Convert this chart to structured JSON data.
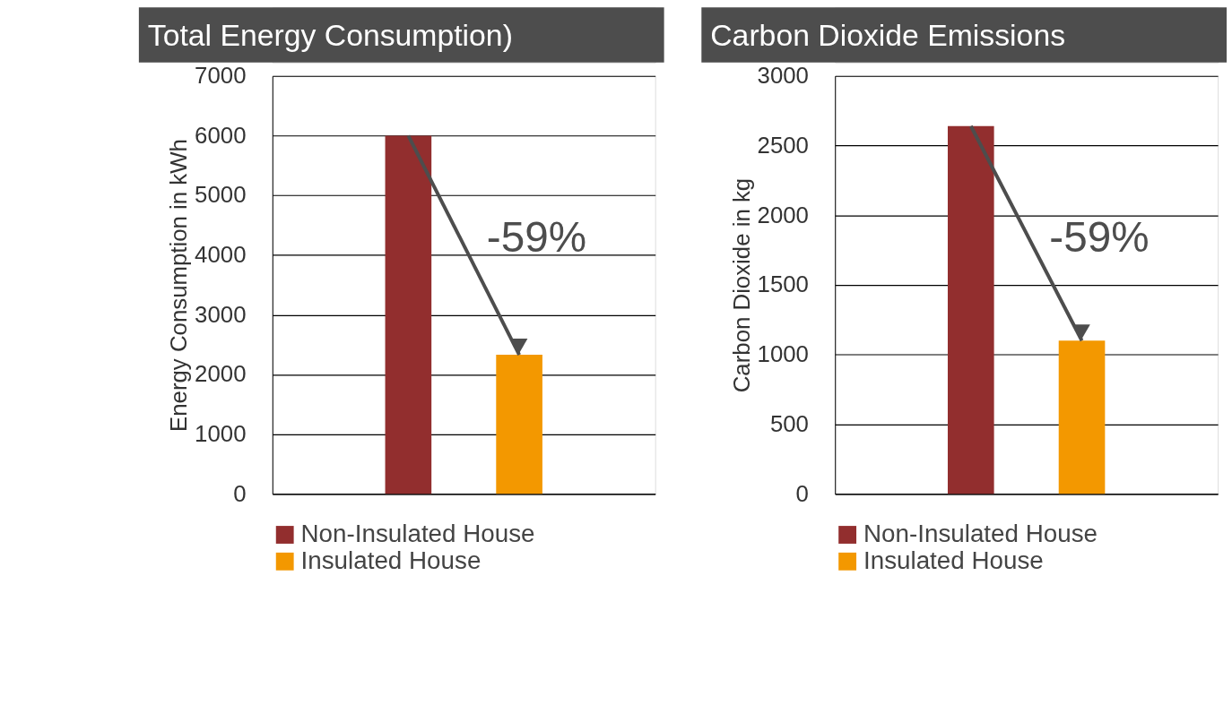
{
  "chart_data": [
    {
      "type": "bar",
      "title": "Total Energy Consumption)",
      "ylabel": "Energy Consumption in kWh",
      "categories": [
        null
      ],
      "series": [
        {
          "name": "Non-Insulated House",
          "color": "#922e2e",
          "values": [
            6000
          ]
        },
        {
          "name": "Insulated House",
          "color": "#f39800",
          "values": [
            2330
          ]
        }
      ],
      "ylim": [
        0,
        7000
      ],
      "yticks": [
        0,
        1000,
        2000,
        3000,
        4000,
        5000,
        6000,
        7000
      ],
      "grid": "y",
      "legend": "bottom",
      "annotations": [
        "-59%"
      ]
    },
    {
      "type": "bar",
      "title": "Carbon Dioxide Emissions",
      "ylabel": "Carbon Dioxide in kg",
      "categories": [
        null
      ],
      "series": [
        {
          "name": "Non-Insulated House",
          "color": "#922e2e",
          "values": [
            2640
          ]
        },
        {
          "name": "Insulated House",
          "color": "#f39800",
          "values": [
            1100
          ]
        }
      ],
      "ylim": [
        0,
        3000
      ],
      "yticks": [
        0,
        500,
        1000,
        1500,
        2000,
        2500,
        3000
      ],
      "grid": "y",
      "legend": "bottom",
      "annotations": [
        "-59%"
      ]
    }
  ]
}
